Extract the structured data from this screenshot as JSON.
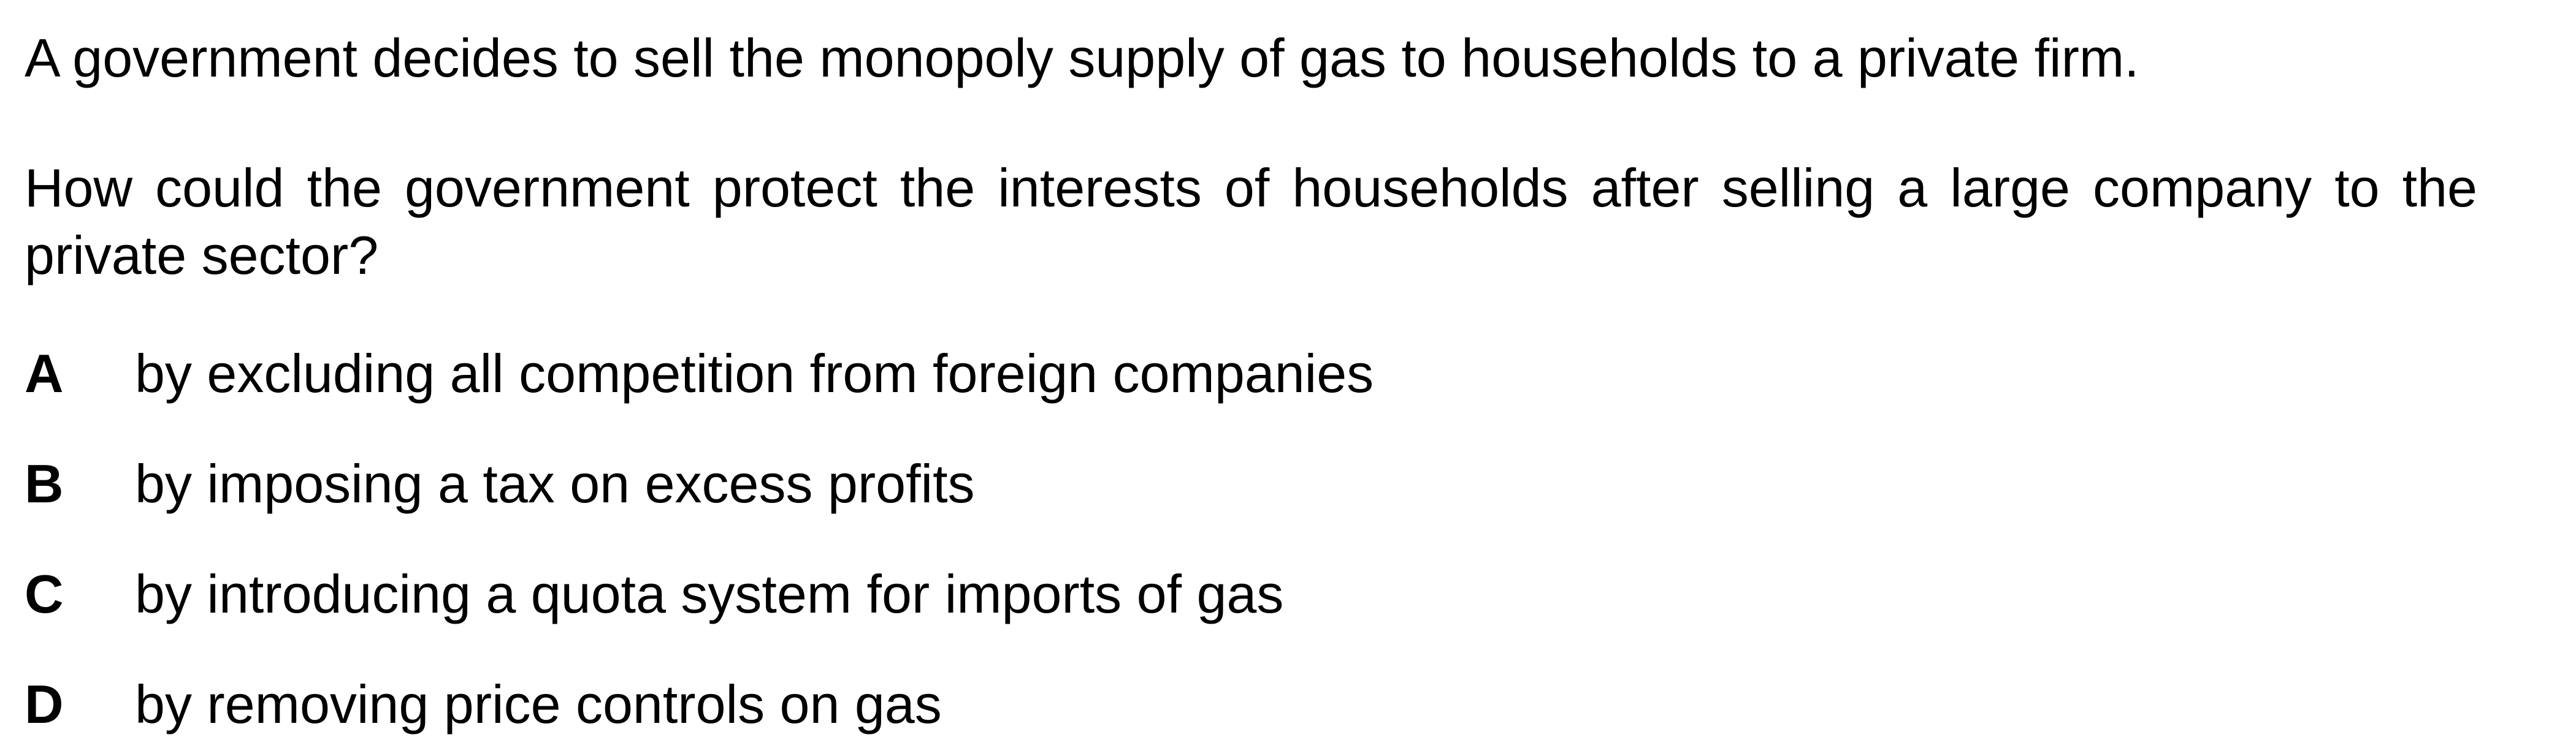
{
  "question": {
    "intro": "A government decides to sell the monopoly supply of gas to households to a private firm.",
    "stem": "How could the government protect the interests of households after selling a large company to the private sector?",
    "options": [
      {
        "letter": "A",
        "text": "by excluding all competition from foreign companies"
      },
      {
        "letter": "B",
        "text": "by imposing a tax on excess profits"
      },
      {
        "letter": "C",
        "text": "by introducing a quota system for imports of gas"
      },
      {
        "letter": "D",
        "text": "by removing price controls on gas"
      }
    ]
  }
}
